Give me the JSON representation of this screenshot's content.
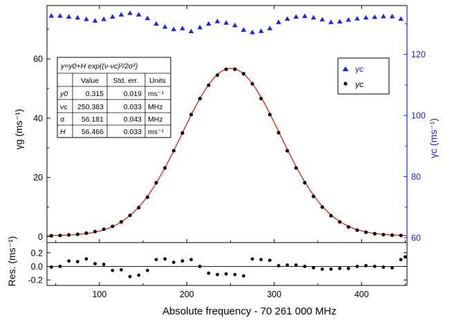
{
  "chart_data": [
    {
      "type": "scatter",
      "panel": "main",
      "xlabel": "Absolute frequency - 70 261 000 MHz",
      "ylabel_left": "γg (ms⁻¹)",
      "ylabel_right": "γc (ms⁻¹)",
      "xlim": [
        40,
        452
      ],
      "ylim_left": [
        -2,
        78
      ],
      "ylim_right": [
        58.4,
        136
      ],
      "x_ticks": [
        100,
        200,
        300,
        400
      ],
      "y_ticks_left": [
        0,
        20,
        40,
        60
      ],
      "y_ticks_right": [
        60,
        80,
        100,
        120
      ],
      "grid": false,
      "legend_position": "top-right",
      "legend": [
        {
          "marker": "triangle",
          "color": "#1f1fff",
          "label": "γc"
        },
        {
          "marker": "circle",
          "color": "#000000",
          "label": "γc"
        }
      ],
      "fit_table": {
        "formula": "y=y0+H exp((ν-νc)²/2σ²)",
        "headers": [
          "",
          "Value",
          "Std. err.",
          "Units"
        ],
        "rows": [
          [
            "y0",
            "0.315",
            "0.019",
            "ms⁻¹"
          ],
          [
            "νc",
            "250.383",
            "0.033",
            "MHz"
          ],
          [
            "σ",
            "56.181",
            "0.043",
            "MHz"
          ],
          [
            "H",
            "56.466",
            "0.033",
            "ms⁻¹"
          ]
        ]
      },
      "fit": {
        "y0": 0.315,
        "H": 56.466,
        "xc": 250.383,
        "sigma": 56.181,
        "color": "#ff0000"
      },
      "series": [
        {
          "name": "γc",
          "axis": "left",
          "marker": "circle",
          "color": "#000000",
          "x": [
            45,
            55,
            65,
            75,
            85,
            95,
            105,
            115,
            125,
            135,
            145,
            155,
            165,
            175,
            185,
            195,
            205,
            215,
            225,
            235,
            245,
            255,
            265,
            275,
            285,
            295,
            305,
            315,
            325,
            335,
            345,
            355,
            365,
            375,
            385,
            395,
            405,
            415,
            425,
            435,
            445
          ],
          "y": [
            0.3,
            0.4,
            0.6,
            0.8,
            1.2,
            1.7,
            2.5,
            3.5,
            5.0,
            7.2,
            9.8,
            13.3,
            18.2,
            23.2,
            29.0,
            35.0,
            41.2,
            46.6,
            51.1,
            54.5,
            56.5,
            56.5,
            55.0,
            51.6,
            46.6,
            41.2,
            35.1,
            29.0,
            23.2,
            18.2,
            13.6,
            10.0,
            7.1,
            5.0,
            3.3,
            2.2,
            1.5,
            1.0,
            0.7,
            0.5,
            0.4
          ]
        },
        {
          "name": "γc",
          "axis": "right",
          "marker": "triangle",
          "color": "#1f1fff",
          "x": [
            45,
            55,
            65,
            75,
            85,
            95,
            105,
            115,
            125,
            135,
            145,
            155,
            165,
            175,
            185,
            195,
            205,
            215,
            225,
            235,
            245,
            255,
            265,
            275,
            285,
            295,
            305,
            315,
            325,
            335,
            345,
            355,
            365,
            375,
            385,
            395,
            405,
            415,
            425,
            435,
            445
          ],
          "y": [
            132.6,
            132.6,
            132.3,
            132.0,
            131.5,
            131.0,
            131.5,
            132.3,
            133.0,
            133.5,
            133.0,
            131.8,
            130.0,
            129.0,
            128.2,
            128.5,
            127.5,
            128.8,
            130.0,
            130.8,
            130.3,
            129.5,
            128.0,
            127.2,
            127.6,
            128.5,
            130.5,
            131.6,
            132.3,
            132.5,
            132.0,
            131.4,
            130.5,
            130.7,
            131.3,
            131.7,
            132.0,
            132.2,
            132.4,
            132.4,
            131.6
          ]
        }
      ]
    },
    {
      "type": "scatter",
      "panel": "residuals",
      "ylabel": "Res. (ms⁻¹)",
      "xlim": [
        40,
        452
      ],
      "ylim": [
        -0.28,
        0.35
      ],
      "y_ticks": [
        -0.2,
        0.0,
        0.2
      ],
      "zero_line": true,
      "series": [
        {
          "marker": "circle",
          "color": "#000000",
          "x": [
            45,
            55,
            65,
            75,
            85,
            95,
            105,
            115,
            125,
            135,
            145,
            155,
            165,
            175,
            185,
            195,
            205,
            215,
            225,
            235,
            245,
            255,
            265,
            275,
            285,
            295,
            305,
            315,
            325,
            335,
            345,
            355,
            365,
            375,
            385,
            395,
            405,
            415,
            425,
            435,
            445,
            450
          ],
          "y": [
            -0.01,
            0.0,
            0.08,
            0.07,
            0.11,
            0.04,
            0.03,
            -0.06,
            -0.05,
            -0.15,
            -0.13,
            -0.06,
            0.1,
            0.11,
            0.06,
            0.08,
            0.1,
            0.0,
            -0.1,
            -0.12,
            -0.11,
            -0.12,
            -0.14,
            0.11,
            0.1,
            0.09,
            0.01,
            0.02,
            0.02,
            0.0,
            -0.02,
            -0.04,
            -0.04,
            -0.03,
            -0.03,
            0.0,
            0.01,
            0.0,
            -0.01,
            -0.02,
            0.1,
            0.14
          ]
        }
      ]
    }
  ]
}
